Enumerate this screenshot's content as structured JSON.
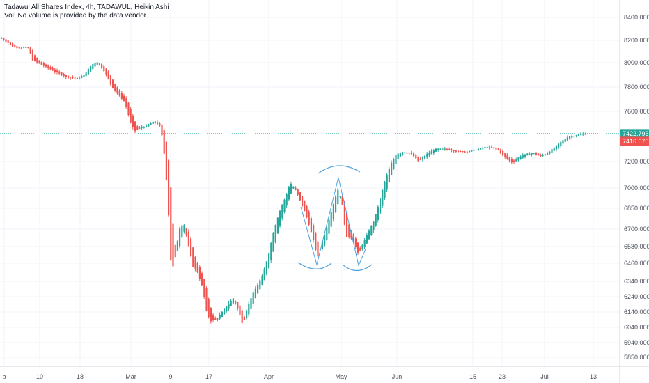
{
  "header": {
    "title": "Tadawul All Shares Index, 4h, TADAWUL, Heikin Ashi",
    "volume_note": "Vol: No volume is provided by the data vendor."
  },
  "colors": {
    "up": "#26a69a",
    "down": "#ef5350",
    "pattern": "#4aa3df",
    "grid": "#f0f3fa",
    "axis": "#cfd3dc",
    "last_price_line": "#26a69a"
  },
  "chart_data": {
    "type": "candlestick",
    "style": "Heikin Ashi",
    "interval": "4h",
    "ylim": [
      5790,
      8480
    ],
    "y_ticks": [
      8400,
      8200,
      8000,
      7800,
      7600,
      7200,
      7000,
      6850,
      6700,
      6580,
      6460,
      6340,
      6240,
      6140,
      6040,
      5940,
      5850
    ],
    "y_tick_labels": [
      "8400.000",
      "8200.000",
      "8000.000",
      "7800.000",
      "7600.000",
      "7200.000",
      "7000.000",
      "6850.000",
      "6700.000",
      "6580.000",
      "6460.000",
      "6340.000",
      "6240.000",
      "6140.000",
      "6040.000",
      "5940.000",
      "5850.000"
    ],
    "x_tick_labels": [
      "b",
      "10",
      "18",
      "Mar",
      "9",
      "17",
      "Apr",
      "May",
      "Jun",
      "15",
      "23",
      "Jul",
      "13"
    ],
    "price_labels": [
      {
        "label": "7422.795",
        "value": 7423,
        "kind": "last"
      },
      {
        "label": "7416.670",
        "value": 7417,
        "kind": "prev"
      }
    ],
    "grid": true,
    "pattern_annotation": "W / double bottom drawing with arcs (Apr–May)",
    "anchors": [
      [
        0,
        8220
      ],
      [
        10,
        8180
      ],
      [
        18,
        8140
      ],
      [
        26,
        8130
      ],
      [
        34,
        8140
      ],
      [
        40,
        8130
      ],
      [
        46,
        8020
      ],
      [
        60,
        7980
      ],
      [
        80,
        7920
      ],
      [
        95,
        7880
      ],
      [
        110,
        7870
      ],
      [
        120,
        7900
      ],
      [
        130,
        7980
      ],
      [
        138,
        8010
      ],
      [
        150,
        7920
      ],
      [
        160,
        7800
      ],
      [
        170,
        7730
      ],
      [
        178,
        7680
      ],
      [
        186,
        7520
      ],
      [
        192,
        7440
      ],
      [
        200,
        7470
      ],
      [
        208,
        7480
      ],
      [
        215,
        7510
      ],
      [
        222,
        7520
      ],
      [
        230,
        7470
      ],
      [
        236,
        7200
      ],
      [
        240,
        6900
      ],
      [
        245,
        6400
      ],
      [
        250,
        6480
      ],
      [
        256,
        6700
      ],
      [
        263,
        6740
      ],
      [
        270,
        6580
      ],
      [
        276,
        6440
      ],
      [
        282,
        6410
      ],
      [
        290,
        6300
      ],
      [
        296,
        6130
      ],
      [
        302,
        6080
      ],
      [
        310,
        6090
      ],
      [
        318,
        6140
      ],
      [
        326,
        6190
      ],
      [
        334,
        6230
      ],
      [
        342,
        6140
      ],
      [
        348,
        6050
      ],
      [
        352,
        6140
      ],
      [
        360,
        6240
      ],
      [
        368,
        6310
      ],
      [
        376,
        6380
      ],
      [
        384,
        6510
      ],
      [
        392,
        6690
      ],
      [
        400,
        6820
      ],
      [
        408,
        6920
      ],
      [
        416,
        7040
      ],
      [
        424,
        6980
      ],
      [
        432,
        6880
      ],
      [
        440,
        6780
      ],
      [
        448,
        6640
      ],
      [
        455,
        6500
      ],
      [
        461,
        6600
      ],
      [
        468,
        6710
      ],
      [
        476,
        6850
      ],
      [
        484,
        6990
      ],
      [
        490,
        6900
      ],
      [
        496,
        6640
      ],
      [
        502,
        6650
      ],
      [
        508,
        6600
      ],
      [
        514,
        6520
      ],
      [
        520,
        6600
      ],
      [
        528,
        6680
      ],
      [
        536,
        6760
      ],
      [
        544,
        6900
      ],
      [
        552,
        7060
      ],
      [
        560,
        7180
      ],
      [
        568,
        7260
      ],
      [
        578,
        7280
      ],
      [
        590,
        7260
      ],
      [
        600,
        7200
      ],
      [
        612,
        7260
      ],
      [
        625,
        7300
      ],
      [
        640,
        7300
      ],
      [
        655,
        7280
      ],
      [
        670,
        7280
      ],
      [
        685,
        7300
      ],
      [
        700,
        7320
      ],
      [
        715,
        7290
      ],
      [
        725,
        7230
      ],
      [
        735,
        7190
      ],
      [
        745,
        7240
      ],
      [
        755,
        7260
      ],
      [
        765,
        7270
      ],
      [
        775,
        7240
      ],
      [
        785,
        7270
      ],
      [
        795,
        7310
      ],
      [
        805,
        7360
      ],
      [
        815,
        7400
      ],
      [
        825,
        7410
      ],
      [
        835,
        7420
      ],
      [
        842,
        7423
      ]
    ]
  }
}
